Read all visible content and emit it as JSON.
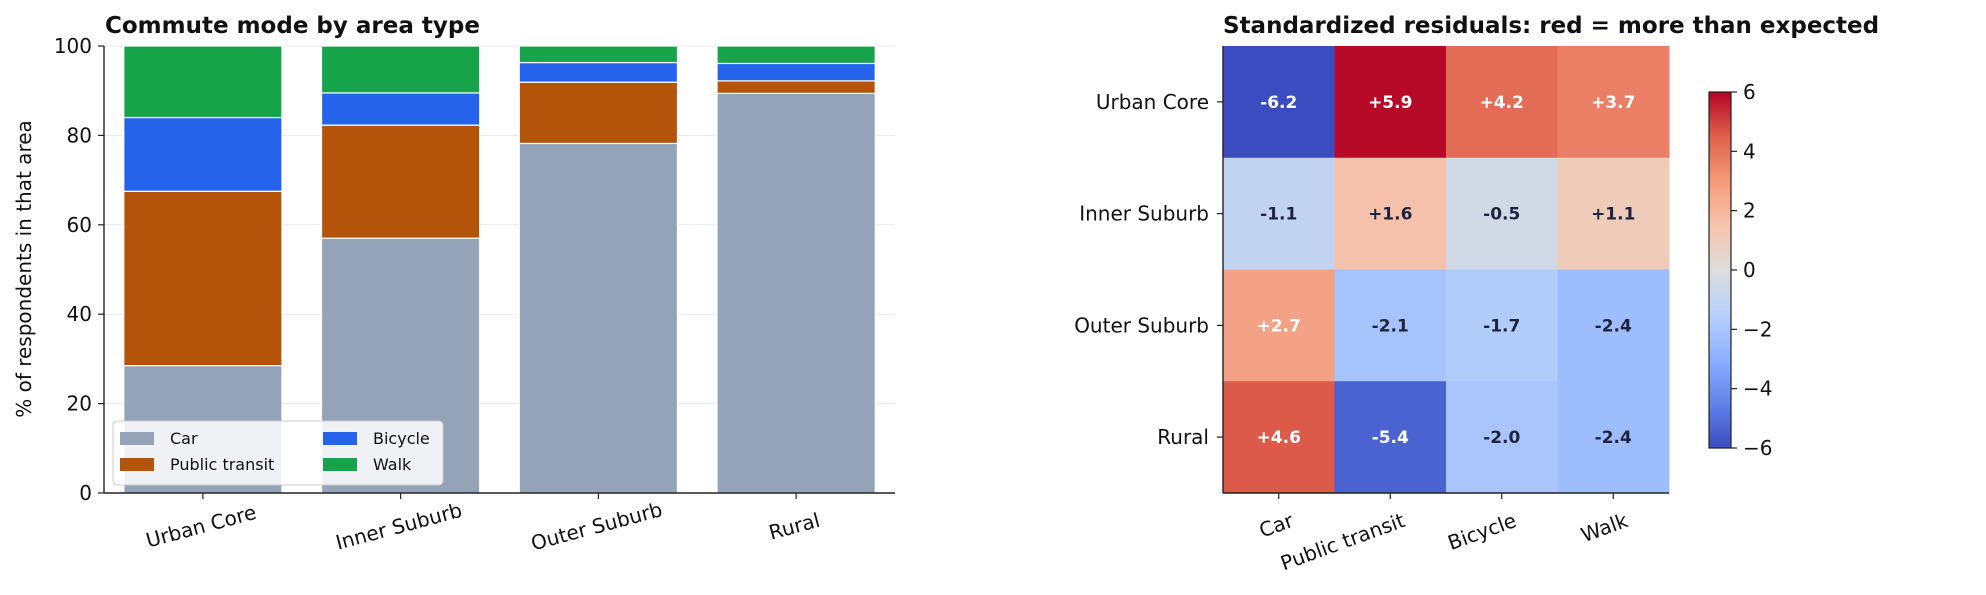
{
  "chart_data": [
    {
      "type": "bar",
      "stacked": true,
      "title": "Commute mode by area type",
      "xlabel": "",
      "ylabel": "% of respondents in that area",
      "ylim": [
        0,
        100
      ],
      "yticks": [
        0,
        20,
        40,
        60,
        80,
        100
      ],
      "grid": true,
      "legend_position": "lower-left",
      "categories": [
        "Urban Core",
        "Inner Suburb",
        "Outer Suburb",
        "Rural"
      ],
      "series": [
        {
          "name": "Car",
          "color": "#94a3b8",
          "values": [
            28.5,
            57.0,
            78.2,
            89.4
          ]
        },
        {
          "name": "Public transit",
          "color": "#b4540a",
          "values": [
            39.0,
            25.3,
            13.7,
            2.8
          ]
        },
        {
          "name": "Bicycle",
          "color": "#2563eb",
          "values": [
            16.5,
            7.2,
            4.4,
            3.9
          ]
        },
        {
          "name": "Walk",
          "color": "#16a34a",
          "values": [
            16.0,
            10.5,
            3.7,
            3.9
          ]
        }
      ]
    },
    {
      "type": "heatmap",
      "title": "Standardized residuals: red = more than expected",
      "rows": [
        "Urban Core",
        "Inner Suburb",
        "Outer Suburb",
        "Rural"
      ],
      "columns": [
        "Car",
        "Public transit",
        "Bicycle",
        "Walk"
      ],
      "values": [
        [
          -6.2,
          5.9,
          4.2,
          3.7
        ],
        [
          -1.1,
          1.6,
          -0.5,
          1.1
        ],
        [
          2.7,
          -2.1,
          -1.7,
          -2.4
        ],
        [
          4.6,
          -5.4,
          -2.0,
          -2.4
        ]
      ],
      "labels": [
        [
          "-6.2",
          "+5.9",
          "+4.2",
          "+3.7"
        ],
        [
          "-1.1",
          "+1.6",
          "-0.5",
          "+1.1"
        ],
        [
          "+2.7",
          "-2.1",
          "-1.7",
          "-2.4"
        ],
        [
          "+4.6",
          "-5.4",
          "-2.0",
          "-2.4"
        ]
      ],
      "colormap": "coolwarm",
      "vmin": -6,
      "vmax": 6,
      "colorbar_ticks": [
        "−6",
        "−4",
        "−2",
        "0",
        "2",
        "4",
        "6"
      ]
    }
  ]
}
